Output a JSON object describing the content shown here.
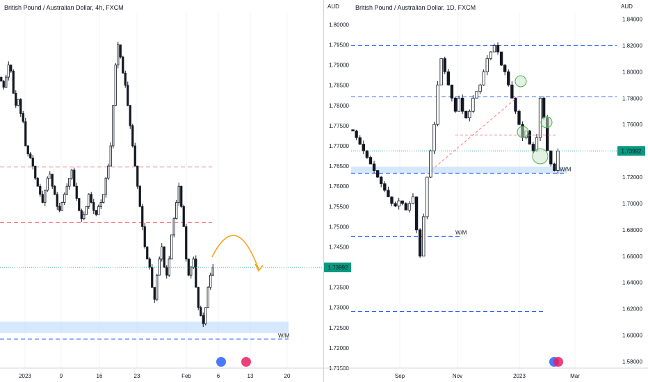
{
  "charts": [
    {
      "title": "British Pound / Australian Dollar, 4h, FXCM",
      "axis_unit": "AUD",
      "price_axis_ticks": [
        "1.80000",
        "1.79500",
        "1.79000",
        "1.78500",
        "1.78000",
        "1.77500",
        "1.77000",
        "1.76500",
        "1.76000",
        "1.75500",
        "1.75000",
        "1.74500",
        "1.74000",
        "1.73500",
        "1.73000",
        "1.72500",
        "1.72000",
        "1.71500"
      ],
      "time_axis_ticks": [
        "2023",
        "9",
        "16",
        "23",
        "Feb",
        "6",
        "13",
        "20"
      ],
      "current_price": "1.73992",
      "zone_label": "W/M"
    },
    {
      "title": "British Pound / Australian Dollar, 1D, FXCM",
      "axis_unit": "AUD",
      "price_axis_ticks": [
        "1.84000",
        "1.82000",
        "1.80000",
        "1.78000",
        "1.76000",
        "1.74000",
        "1.72000",
        "1.70000",
        "1.68000",
        "1.66000",
        "1.64000",
        "1.62000",
        "1.60000",
        "1.58000"
      ],
      "time_axis_ticks": [
        "Sep",
        "Nov",
        "2023",
        "Mar"
      ],
      "current_price": "1.73992",
      "zone_labels": [
        "W/M",
        "W/M"
      ]
    }
  ],
  "chart_data": [
    {
      "type": "candlestick",
      "title": "British Pound / Australian Dollar, 4h, FXCM",
      "ylabel": "AUD",
      "ylim": [
        1.715,
        1.803
      ],
      "x_ticks": [
        "2023",
        "9",
        "16",
        "23",
        "Feb",
        "6",
        "13",
        "20"
      ],
      "current_price": 1.73992,
      "horizontal_levels": [
        {
          "value": 1.7648,
          "style": "dashed",
          "color": "#f77c80"
        },
        {
          "value": 1.751,
          "style": "dashed",
          "color": "#f77c80"
        },
        {
          "value": 1.7222,
          "style": "dashed",
          "color": "#2962ff"
        }
      ],
      "demand_zone": {
        "from": 1.7237,
        "to": 1.7265,
        "label": "W/M"
      },
      "projection": "up then down (arc arrow)",
      "close_series": [
        1.786,
        1.7845,
        1.787,
        1.79,
        1.7885,
        1.783,
        1.78,
        1.7815,
        1.778,
        1.776,
        1.77,
        1.768,
        1.767,
        1.765,
        1.762,
        1.76,
        1.758,
        1.756,
        1.759,
        1.762,
        1.763,
        1.76,
        1.758,
        1.755,
        1.754,
        1.756,
        1.758,
        1.76,
        1.762,
        1.764,
        1.76,
        1.757,
        1.754,
        1.752,
        1.753,
        1.755,
        1.758,
        1.756,
        1.754,
        1.753,
        1.755,
        1.756,
        1.758,
        1.762,
        1.765,
        1.77,
        1.78,
        1.79,
        1.795,
        1.792,
        1.788,
        1.785,
        1.78,
        1.775,
        1.77,
        1.765,
        1.76,
        1.755,
        1.75,
        1.745,
        1.742,
        1.74,
        1.735,
        1.732,
        1.738,
        1.742,
        1.745,
        1.74,
        1.738,
        1.742,
        1.748,
        1.752,
        1.756,
        1.76,
        1.755,
        1.75,
        1.742,
        1.738,
        1.74,
        1.742,
        1.735,
        1.73,
        1.728,
        1.726,
        1.73,
        1.735,
        1.738,
        1.7399
      ]
    },
    {
      "type": "candlestick",
      "title": "British Pound / Australian Dollar, 1D, FXCM",
      "ylabel": "AUD",
      "ylim": [
        1.575,
        1.845
      ],
      "x_ticks": [
        "Sep",
        "Nov",
        "2023",
        "Mar"
      ],
      "current_price": 1.73992,
      "horizontal_levels": [
        {
          "value": 1.82,
          "style": "dashed",
          "color": "#2962ff"
        },
        {
          "value": 1.781,
          "style": "dashed",
          "color": "#2962ff"
        },
        {
          "value": 1.723,
          "style": "dashed",
          "color": "#2962ff"
        },
        {
          "value": 1.675,
          "style": "dashed",
          "color": "#2962ff"
        },
        {
          "value": 1.618,
          "style": "dashed",
          "color": "#2962ff"
        }
      ],
      "demand_zone": {
        "from": 1.723,
        "to": 1.728,
        "label": "W/M"
      },
      "close_series": [
        1.755,
        1.75,
        1.745,
        1.74,
        1.735,
        1.73,
        1.725,
        1.72,
        1.715,
        1.71,
        1.705,
        1.7,
        1.698,
        1.702,
        1.7,
        1.695,
        1.7,
        1.705,
        1.68,
        1.66,
        1.69,
        1.72,
        1.74,
        1.76,
        1.79,
        1.81,
        1.8,
        1.79,
        1.78,
        1.77,
        1.78,
        1.77,
        1.765,
        1.77,
        1.78,
        1.785,
        1.79,
        1.8,
        1.81,
        1.815,
        1.82,
        1.815,
        1.805,
        1.8,
        1.79,
        1.78,
        1.77,
        1.76,
        1.75,
        1.755,
        1.745,
        1.74,
        1.75,
        1.78,
        1.765,
        1.74,
        1.73,
        1.725,
        1.7399
      ]
    }
  ]
}
